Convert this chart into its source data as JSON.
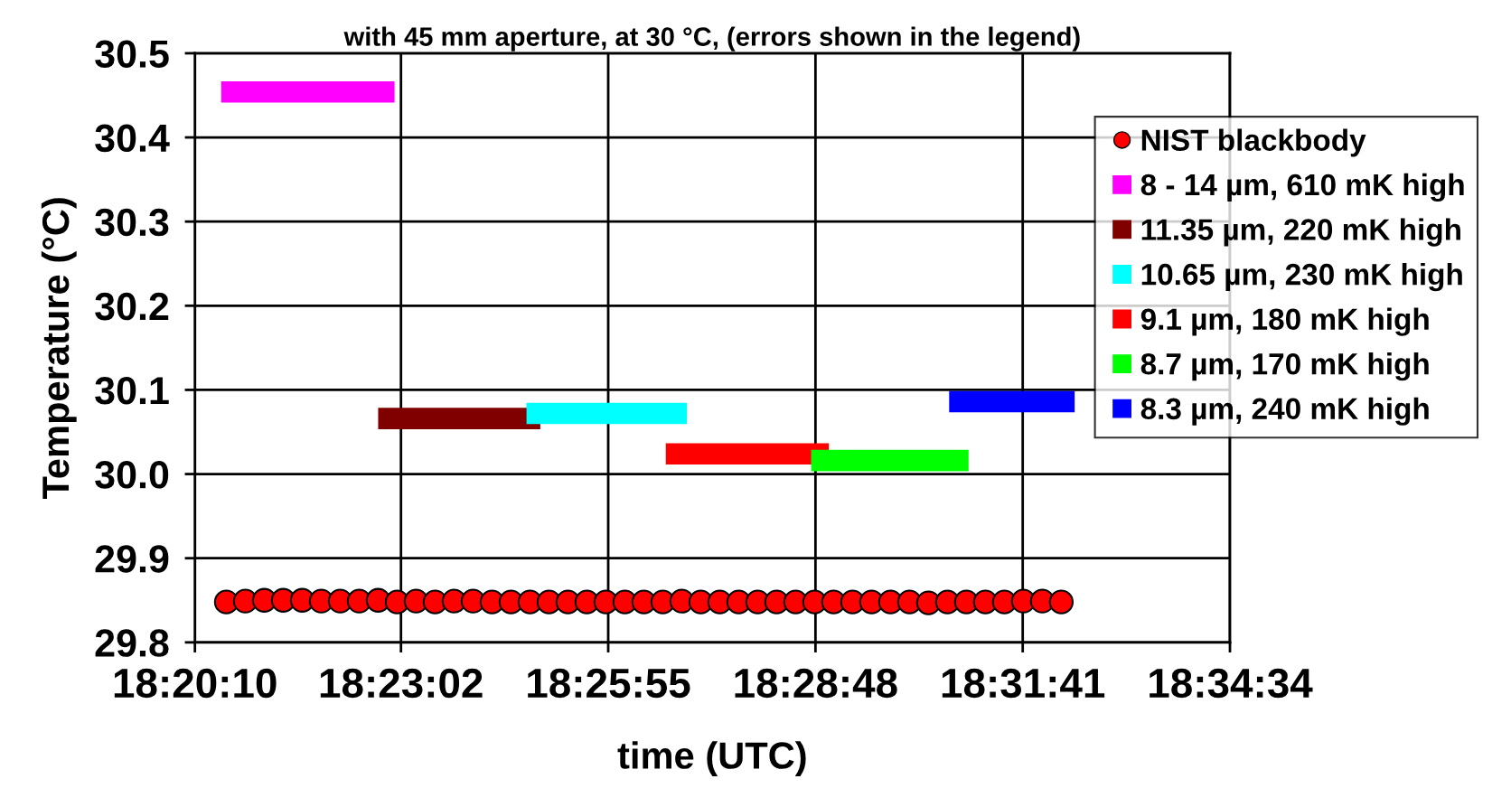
{
  "chart_data": {
    "type": "line",
    "title": "with 45 mm aperture, at 30 °C, (errors shown in the legend)",
    "xlabel": "time (UTC)",
    "ylabel": "Temperature (°C)",
    "xlim": [
      18.336111,
      18.576111
    ],
    "xticks": [
      {
        "value": 18.336111,
        "label": "18:20:10"
      },
      {
        "value": 18.383889,
        "label": "18:23:02"
      },
      {
        "value": 18.431944,
        "label": "18:25:55"
      },
      {
        "value": 18.48,
        "label": "18:28:48"
      },
      {
        "value": 18.528056,
        "label": "18:31:41"
      },
      {
        "value": 18.576111,
        "label": "18:34:34"
      }
    ],
    "ylim": [
      29.8,
      30.5
    ],
    "yticks": [
      {
        "value": 29.8,
        "label": "29.8"
      },
      {
        "value": 29.9,
        "label": "29.9"
      },
      {
        "value": 30.0,
        "label": "30.0"
      },
      {
        "value": 30.1,
        "label": "30.1"
      },
      {
        "value": 30.2,
        "label": "30.2"
      },
      {
        "value": 30.3,
        "label": "30.3"
      },
      {
        "value": 30.4,
        "label": "30.4"
      },
      {
        "value": 30.5,
        "label": "30.5"
      }
    ],
    "grid": true,
    "legend": "right",
    "series": [
      {
        "name": "NIST blackbody",
        "type": "scatter",
        "marker": "circle",
        "color": "#ff0000",
        "x": [
          18.3434,
          18.3478,
          18.3522,
          18.3566,
          18.361,
          18.3654,
          18.3698,
          18.3742,
          18.3786,
          18.383,
          18.3874,
          18.3918,
          18.3962,
          18.4006,
          18.405,
          18.4094,
          18.4138,
          18.4182,
          18.4226,
          18.427,
          18.4314,
          18.4358,
          18.4402,
          18.4446,
          18.449,
          18.4534,
          18.4578,
          18.4622,
          18.4666,
          18.471,
          18.4754,
          18.4798,
          18.4842,
          18.4886,
          18.493,
          18.4974,
          18.5018,
          18.5062,
          18.5106,
          18.515,
          18.5194,
          18.5238,
          18.5282,
          18.5326,
          18.537
        ],
        "values": [
          29.848,
          29.849,
          29.85,
          29.85,
          29.85,
          29.849,
          29.849,
          29.849,
          29.85,
          29.848,
          29.849,
          29.848,
          29.849,
          29.849,
          29.848,
          29.848,
          29.848,
          29.848,
          29.848,
          29.848,
          29.848,
          29.848,
          29.848,
          29.848,
          29.849,
          29.848,
          29.848,
          29.848,
          29.848,
          29.848,
          29.848,
          29.848,
          29.848,
          29.848,
          29.848,
          29.848,
          29.848,
          29.847,
          29.848,
          29.848,
          29.848,
          29.848,
          29.849,
          29.849,
          29.848
        ]
      },
      {
        "name": "8 - 14 µm, 610 mK high",
        "color": "#ff00ff",
        "x": [
          18.3422,
          18.3824
        ],
        "values": [
          30.454,
          30.454
        ]
      },
      {
        "name": "11.35 µm, 220 mK high",
        "color": "#800000",
        "x": [
          18.3786,
          18.4162
        ],
        "values": [
          30.066,
          30.066
        ]
      },
      {
        "name": "10.65 µm, 230 mK high",
        "color": "#00ffff",
        "x": [
          18.413,
          18.4502
        ],
        "values": [
          30.072,
          30.072
        ]
      },
      {
        "name": "9.1 µm, 180 mK high",
        "color": "#ff0000",
        "x": [
          18.4453,
          18.4831
        ],
        "values": [
          30.024,
          30.024
        ]
      },
      {
        "name": "8.7 µm, 170 mK high",
        "color": "#00ff00",
        "x": [
          18.479,
          18.5155
        ],
        "values": [
          30.016,
          30.016
        ]
      },
      {
        "name": "8.3 µm, 240 mK high",
        "color": "#0000ff",
        "x": [
          18.511,
          18.5401
        ],
        "values": [
          30.086,
          30.086
        ]
      }
    ]
  }
}
